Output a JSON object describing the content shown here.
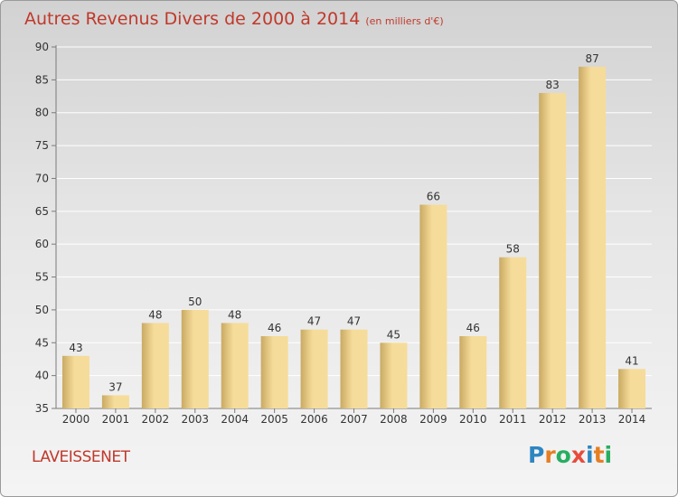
{
  "title": "Autres Revenus Divers de 2000 à 2014",
  "unit": "(en milliers d'€)",
  "commune": "LAVEISSENET",
  "logo": {
    "text": "Proxiti",
    "letters": [
      {
        "ch": "P",
        "color": "#2e86c1"
      },
      {
        "ch": "r",
        "color": "#e67e22"
      },
      {
        "ch": "o",
        "color": "#27ae60"
      },
      {
        "ch": "x",
        "color": "#e74c3c"
      },
      {
        "ch": "i",
        "color": "#2e86c1"
      },
      {
        "ch": "t",
        "color": "#e67e22"
      },
      {
        "ch": "i",
        "color": "#27ae60"
      }
    ]
  },
  "colors": {
    "title": "#c0392b",
    "bar_light": "#f6dc9a",
    "bar_dark": "#c9aa63",
    "axis": "#7a7a7a",
    "grid": "#ffffff"
  },
  "chart_data": {
    "type": "bar",
    "title": "Autres Revenus Divers de 2000 à 2014",
    "categories": [
      "2000",
      "2001",
      "2002",
      "2003",
      "2004",
      "2005",
      "2006",
      "2007",
      "2008",
      "2009",
      "2010",
      "2011",
      "2012",
      "2013",
      "2014"
    ],
    "values": [
      43,
      37,
      48,
      50,
      48,
      46,
      47,
      47,
      45,
      66,
      46,
      58,
      83,
      87,
      41
    ],
    "ylim": [
      35,
      90
    ],
    "yticks": [
      35,
      40,
      45,
      50,
      55,
      60,
      65,
      70,
      75,
      80,
      85,
      90
    ],
    "xlabel": "",
    "ylabel": "",
    "grid": true,
    "data_labels": true
  }
}
